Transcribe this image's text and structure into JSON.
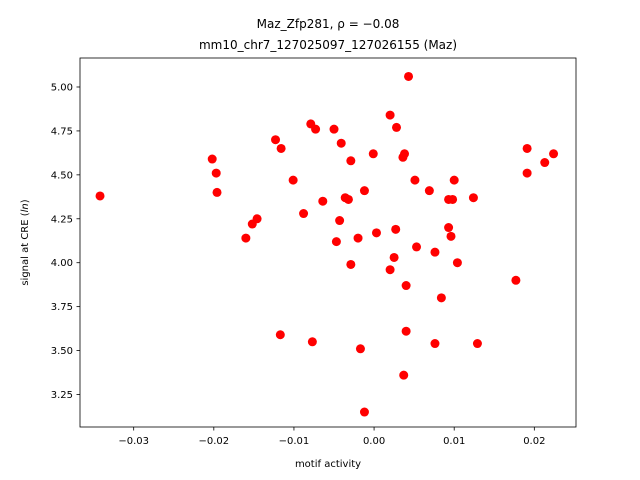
{
  "chart_data": {
    "type": "scatter",
    "title_line1": "Maz_Zfp281, ρ = −0.08",
    "title_line2": "mm10_chr7_127025097_127026155 (Maz)",
    "xlabel": "motif activity",
    "ylabel_prefix": "signal at CRE (",
    "ylabel_italic": "ln",
    "ylabel_suffix": ")",
    "xlim": [
      -0.0367,
      0.0252
    ],
    "ylim": [
      3.065,
      5.165
    ],
    "x_ticks": [
      -0.03,
      -0.02,
      -0.01,
      0.0,
      0.01,
      0.02
    ],
    "x_tick_labels": [
      "−0.03",
      "−0.02",
      "−0.01",
      "0.00",
      "0.01",
      "0.02"
    ],
    "y_ticks": [
      3.25,
      3.5,
      3.75,
      4.0,
      4.25,
      4.5,
      4.75,
      5.0
    ],
    "y_tick_labels": [
      "3.25",
      "3.50",
      "3.75",
      "4.00",
      "4.25",
      "4.50",
      "4.75",
      "5.00"
    ],
    "marker_color": "#ff0000",
    "grid": false,
    "points": [
      {
        "x": -0.0342,
        "y": 4.38
      },
      {
        "x": -0.0202,
        "y": 4.59
      },
      {
        "x": -0.0197,
        "y": 4.51
      },
      {
        "x": -0.0196,
        "y": 4.4
      },
      {
        "x": -0.016,
        "y": 4.14
      },
      {
        "x": -0.0152,
        "y": 4.22
      },
      {
        "x": -0.0146,
        "y": 4.25
      },
      {
        "x": -0.0123,
        "y": 4.7
      },
      {
        "x": -0.0116,
        "y": 4.65
      },
      {
        "x": -0.0117,
        "y": 3.59
      },
      {
        "x": -0.0101,
        "y": 4.47
      },
      {
        "x": -0.0088,
        "y": 4.28
      },
      {
        "x": -0.0079,
        "y": 4.79
      },
      {
        "x": -0.0073,
        "y": 4.76
      },
      {
        "x": -0.0077,
        "y": 3.55
      },
      {
        "x": -0.0064,
        "y": 4.35
      },
      {
        "x": -0.005,
        "y": 4.76
      },
      {
        "x": -0.0047,
        "y": 4.12
      },
      {
        "x": -0.0043,
        "y": 4.24
      },
      {
        "x": -0.0041,
        "y": 4.68
      },
      {
        "x": -0.0036,
        "y": 4.37
      },
      {
        "x": -0.0032,
        "y": 4.36
      },
      {
        "x": -0.0029,
        "y": 4.58
      },
      {
        "x": -0.0029,
        "y": 3.99
      },
      {
        "x": -0.002,
        "y": 4.14
      },
      {
        "x": -0.0017,
        "y": 3.51
      },
      {
        "x": -0.0012,
        "y": 4.41
      },
      {
        "x": -0.0012,
        "y": 3.15
      },
      {
        "x": -0.0001,
        "y": 4.62
      },
      {
        "x": 0.0003,
        "y": 4.17
      },
      {
        "x": 0.002,
        "y": 4.84
      },
      {
        "x": 0.002,
        "y": 3.96
      },
      {
        "x": 0.0025,
        "y": 4.03
      },
      {
        "x": 0.0027,
        "y": 4.19
      },
      {
        "x": 0.0028,
        "y": 4.77
      },
      {
        "x": 0.0036,
        "y": 4.6
      },
      {
        "x": 0.0038,
        "y": 4.62
      },
      {
        "x": 0.0037,
        "y": 3.36
      },
      {
        "x": 0.004,
        "y": 3.87
      },
      {
        "x": 0.004,
        "y": 3.61
      },
      {
        "x": 0.0043,
        "y": 5.06
      },
      {
        "x": 0.0051,
        "y": 4.47
      },
      {
        "x": 0.0053,
        "y": 4.09
      },
      {
        "x": 0.0069,
        "y": 4.41
      },
      {
        "x": 0.0076,
        "y": 4.06
      },
      {
        "x": 0.0076,
        "y": 3.54
      },
      {
        "x": 0.0084,
        "y": 3.8
      },
      {
        "x": 0.0093,
        "y": 4.36
      },
      {
        "x": 0.0093,
        "y": 4.2
      },
      {
        "x": 0.0096,
        "y": 4.15
      },
      {
        "x": 0.0098,
        "y": 4.36
      },
      {
        "x": 0.01,
        "y": 4.47
      },
      {
        "x": 0.0104,
        "y": 4.0
      },
      {
        "x": 0.0124,
        "y": 4.37
      },
      {
        "x": 0.0129,
        "y": 3.54
      },
      {
        "x": 0.0177,
        "y": 3.9
      },
      {
        "x": 0.0191,
        "y": 4.65
      },
      {
        "x": 0.0191,
        "y": 4.51
      },
      {
        "x": 0.0213,
        "y": 4.57
      },
      {
        "x": 0.0224,
        "y": 4.62
      }
    ]
  }
}
